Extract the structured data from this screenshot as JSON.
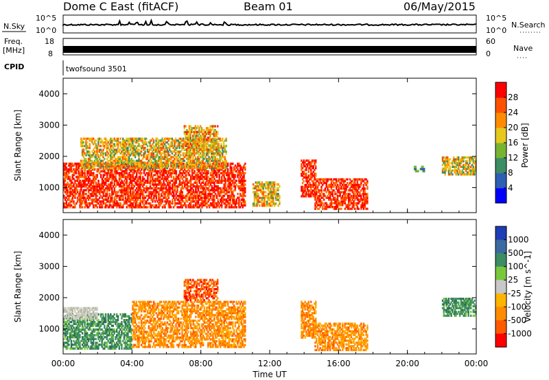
{
  "header": {
    "station": "Dome C East (fitACF)",
    "beam": "Beam 01",
    "date": "06/May/2015"
  },
  "strip": {
    "nsky_label": "N.Sky",
    "nsky_top": "10^5",
    "nsky_bottom": "10^0",
    "nsearch_top": "10^5",
    "nsearch_bottom": "10^0",
    "nsearch_label": "N.Search",
    "freq_label_1": "Freq.",
    "freq_label_2": "[MHz]",
    "freq_top": "18",
    "freq_bottom": "8",
    "nave_top": "60",
    "nave_bottom": "0",
    "nave_label": "Nave",
    "cpid_label": "CPID",
    "cpid_value": "twofsound 3501"
  },
  "chart_data": [
    {
      "type": "heatmap",
      "name": "power",
      "ylabel": "Slant Range [km]",
      "ylim": [
        200,
        4500
      ],
      "yticks": [
        "1000",
        "2000",
        "3000",
        "4000"
      ],
      "colorbar_label": "Power [dB]",
      "colorbar_ticks": [
        "4",
        "8",
        "12",
        "16",
        "20",
        "24",
        "28"
      ],
      "colorbar_colors": [
        "#0000ff",
        "#2d5fb4",
        "#3c8c64",
        "#78b432",
        "#e6c81e",
        "#ff8c00",
        "#ff5000",
        "#ff0000"
      ],
      "echo_regions": [
        {
          "t0": 0.0,
          "t1": 10.6,
          "r0": 350,
          "r1": 1800,
          "level": "high"
        },
        {
          "t0": 1.0,
          "t1": 9.5,
          "r0": 1600,
          "r1": 2600,
          "level": "mid"
        },
        {
          "t0": 7.0,
          "t1": 9.0,
          "r0": 2200,
          "r1": 3000,
          "level": "mixed"
        },
        {
          "t0": 11.0,
          "t1": 12.6,
          "r0": 400,
          "r1": 1200,
          "level": "mid"
        },
        {
          "t0": 13.8,
          "t1": 14.7,
          "r0": 700,
          "r1": 1900,
          "level": "high"
        },
        {
          "t0": 14.6,
          "t1": 17.7,
          "r0": 300,
          "r1": 1300,
          "level": "high"
        },
        {
          "t0": 20.3,
          "t1": 21.0,
          "r0": 1500,
          "r1": 1700,
          "level": "low"
        },
        {
          "t0": 22.0,
          "t1": 24.0,
          "r0": 1400,
          "r1": 2000,
          "level": "mid"
        }
      ]
    },
    {
      "type": "heatmap",
      "name": "velocity",
      "ylabel": "Slant Range [km]",
      "ylim": [
        200,
        4500
      ],
      "yticks": [
        "1000",
        "2000",
        "3000",
        "4000"
      ],
      "xlabel": "Time UT",
      "xticks": [
        "00:00",
        "04:00",
        "08:00",
        "12:00",
        "16:00",
        "20:00",
        "00:00"
      ],
      "colorbar_label": "Velocity [m s^-1]",
      "colorbar_ticks": [
        "1000",
        "500",
        "100",
        "25",
        "-25",
        "-100",
        "-500",
        "-1000"
      ],
      "colorbar_colors": [
        "#1e3cb4",
        "#3c6aa0",
        "#3c8c64",
        "#78c83c",
        "#c8c8c8",
        "#ffb400",
        "#ff8c00",
        "#ff5a00",
        "#ff0000"
      ],
      "echo_regions": [
        {
          "t0": 0.0,
          "t1": 4.0,
          "r0": 350,
          "r1": 1500,
          "level": "green"
        },
        {
          "t0": 0.0,
          "t1": 2.0,
          "r0": 1300,
          "r1": 1700,
          "level": "grey"
        },
        {
          "t0": 4.0,
          "t1": 10.6,
          "r0": 400,
          "r1": 1900,
          "level": "orange"
        },
        {
          "t0": 7.0,
          "t1": 9.0,
          "r0": 1900,
          "r1": 2600,
          "level": "red"
        },
        {
          "t0": 13.8,
          "t1": 14.7,
          "r0": 700,
          "r1": 1900,
          "level": "orange"
        },
        {
          "t0": 14.6,
          "t1": 17.7,
          "r0": 300,
          "r1": 1200,
          "level": "orange"
        },
        {
          "t0": 22.0,
          "t1": 24.0,
          "r0": 1400,
          "r1": 2000,
          "level": "green"
        }
      ]
    }
  ]
}
